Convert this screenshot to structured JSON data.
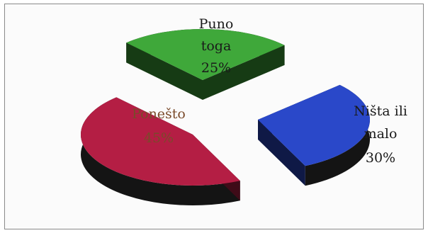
{
  "chart_data": {
    "type": "pie",
    "three_d": true,
    "exploded": true,
    "slices": [
      {
        "name_lines": [
          "Puno",
          "toga"
        ],
        "value_label": "25%",
        "value": 25,
        "color": "#3fa83a",
        "label_color": "#1a1a1a",
        "label_pos": "outside-top"
      },
      {
        "name_lines": [
          "Ništa ili",
          "malo"
        ],
        "value_label": "30%",
        "value": 30,
        "color": "#2a48c9",
        "label_color": "#1a1a1a",
        "label_pos": "outside-right"
      },
      {
        "name_lines": [
          "Ponešto"
        ],
        "value_label": "45%",
        "value": 45,
        "color": "#b41e44",
        "label_color": "#7a4a2a",
        "label_pos": "inside"
      }
    ],
    "legend": "none"
  }
}
